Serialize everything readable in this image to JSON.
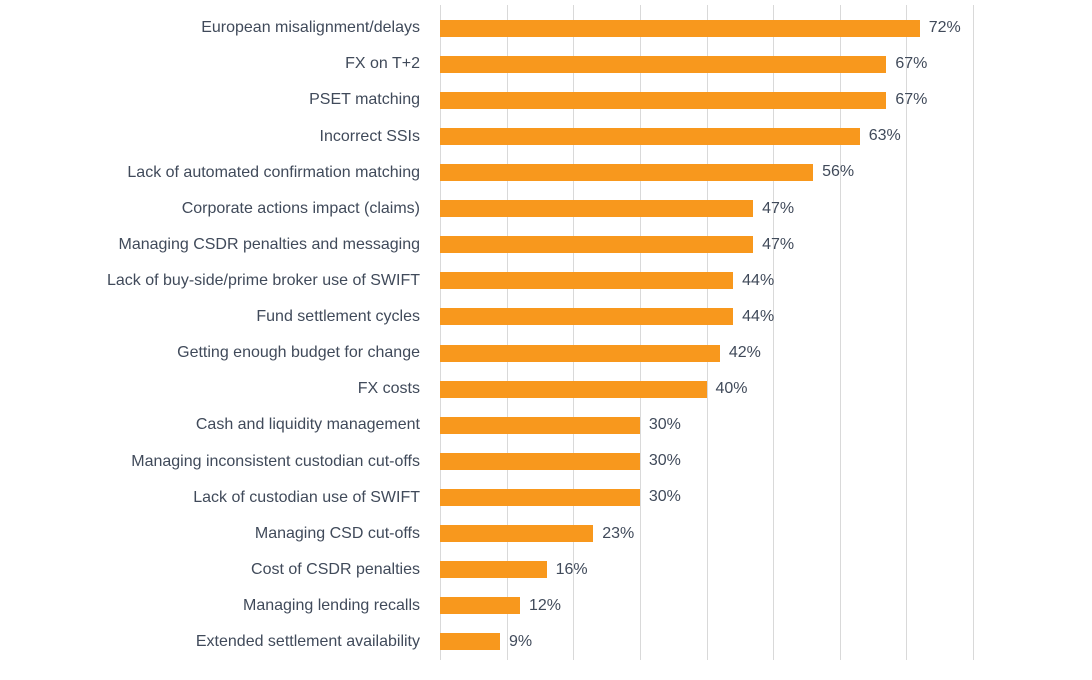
{
  "chart_data": {
    "type": "bar",
    "orientation": "horizontal",
    "title": "",
    "xlabel": "",
    "ylabel": "",
    "categories": [
      "European misalignment/delays",
      "FX on T+2",
      "PSET matching",
      "Incorrect SSIs",
      "Lack of automated confirmation matching",
      "Corporate actions impact (claims)",
      "Managing CSDR penalties and messaging",
      "Lack of buy-side/prime broker use of SWIFT",
      "Fund settlement cycles",
      "Getting enough budget for change",
      "FX costs",
      "Cash and liquidity management",
      "Managing inconsistent custodian cut-offs",
      "Lack of custodian use of SWIFT",
      "Managing CSD cut-offs",
      "Cost of CSDR penalties",
      "Managing lending recalls",
      "Extended settlement availability"
    ],
    "values": [
      72,
      67,
      67,
      63,
      56,
      47,
      47,
      44,
      44,
      42,
      40,
      30,
      30,
      30,
      23,
      16,
      12,
      9
    ],
    "value_suffix": "%",
    "xlim": [
      0,
      80
    ],
    "gridline_step": 10,
    "grid": "vertical",
    "legend": false,
    "axis_tick_labels_visible": false,
    "colors": {
      "bar": "#F8981D",
      "label_text": "#404A5A",
      "value_text": "#404A5A",
      "gridline": "#D9D9D9",
      "background": "#FFFFFF"
    }
  }
}
